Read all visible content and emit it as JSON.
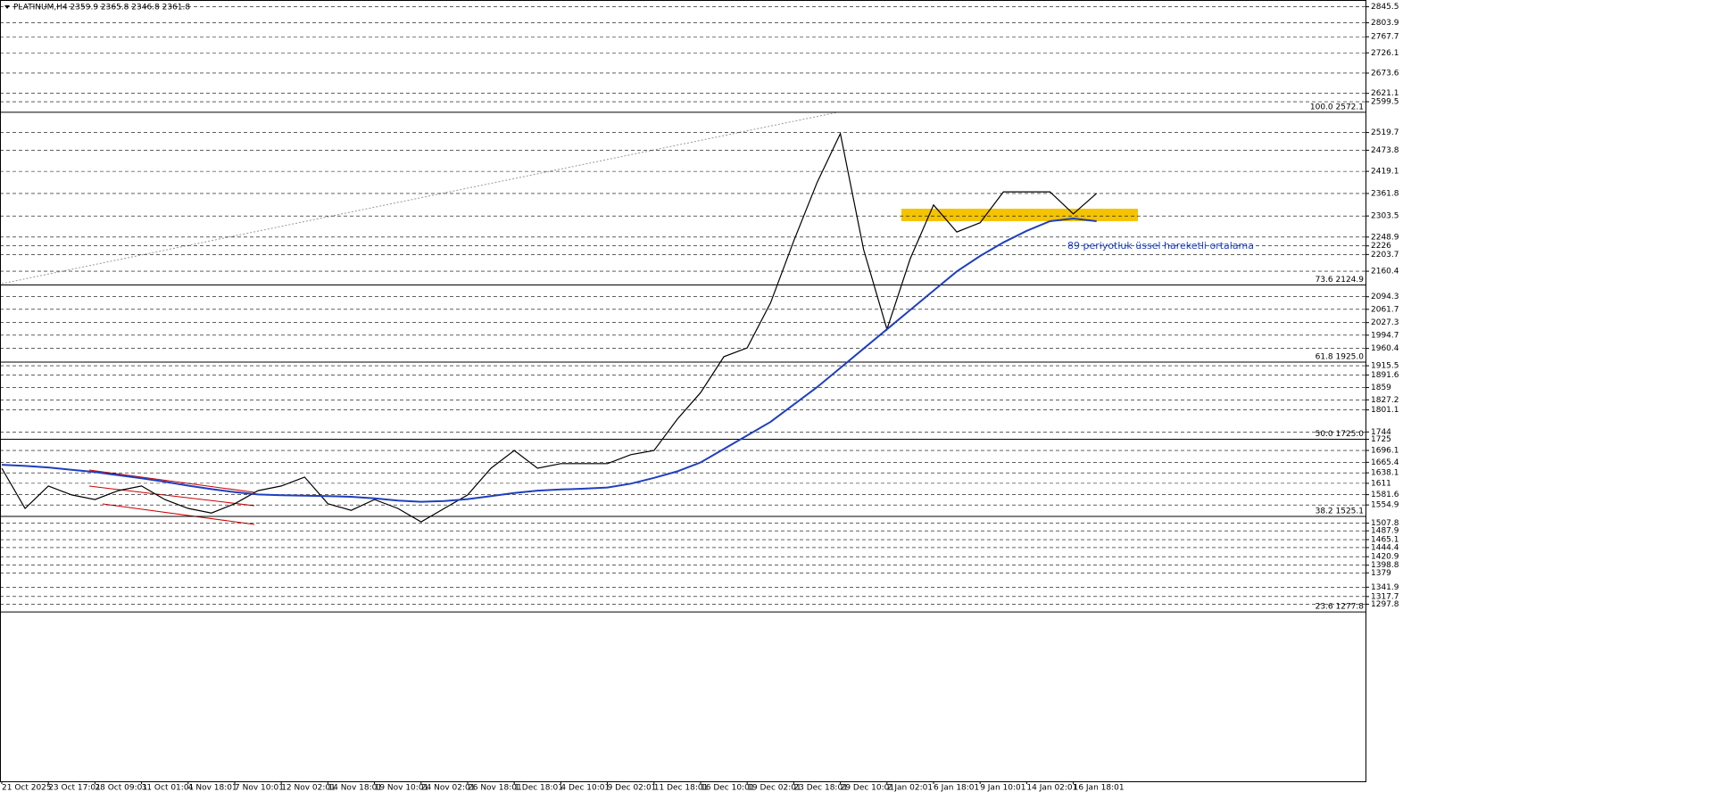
{
  "chart_data": {
    "type": "line",
    "title": "PLATINUM,H4  2359.9 2365.8 2346.8 2361.8",
    "annotation": "89 periyotluk üssel hareketli ortalama",
    "categories": [
      "21 Oct 2025",
      null,
      "23 Oct 17:01",
      null,
      "28 Oct 09:01",
      null,
      "31 Oct 01:01",
      null,
      "4 Nov 18:01",
      null,
      "7 Nov 10:01",
      null,
      "12 Nov 02:01",
      null,
      "14 Nov 18:01",
      null,
      "19 Nov 10:01",
      null,
      "24 Nov 02:01",
      null,
      "26 Nov 18:01",
      null,
      "1 Dec 18:01",
      null,
      "4 Dec 10:01",
      null,
      "9 Dec 02:01",
      null,
      "11 Dec 18:01",
      null,
      "16 Dec 10:01",
      null,
      "19 Dec 02:01",
      null,
      "23 Dec 18:01",
      null,
      "29 Dec 10:01",
      null,
      "2 Jan 02:01",
      null,
      "6 Jan 18:01",
      null,
      "9 Jan 10:01",
      null,
      "14 Jan 02:01",
      null,
      "16 Jan 18:01",
      null
    ],
    "series": [
      {
        "color": "#000000",
        "values": [
          1650,
          1546,
          1604,
          1581,
          1569,
          1592,
          1604,
          1569,
          1546,
          1534,
          1558,
          1592,
          1604,
          1627,
          1558,
          1541,
          1569,
          1546,
          1511,
          1546,
          1581,
          1650,
          1696,
          1650,
          1662,
          1662,
          1662,
          1685,
          1696,
          1777,
          1846,
          1939,
          1962,
          2078,
          2239,
          2390,
          2517,
          2216,
          2010,
          2193,
          2332,
          2262,
          2286,
          2366,
          2366,
          2366,
          2309,
          2362
        ]
      },
      {
        "color": "#1f3fbf",
        "values": [
          1659,
          1656,
          1652,
          1646,
          1640,
          1632,
          1624,
          1615,
          1605,
          1596,
          1588,
          1582,
          1580,
          1579,
          1578,
          1576,
          1572,
          1566,
          1563,
          1565,
          1570,
          1578,
          1586,
          1592,
          1595,
          1597,
          1600,
          1610,
          1625,
          1642,
          1665,
          1700,
          1735,
          1770,
          1815,
          1860,
          1910,
          1960,
          2010,
          2060,
          2110,
          2160,
          2200,
          2235,
          2265,
          2290,
          2297,
          2290
        ]
      }
    ],
    "ylim": [
      839,
      2863
    ],
    "yticks": [
      2845.5,
      2803.9,
      2767.7,
      2726.1,
      2673.6,
      2621.1,
      2599.5,
      2519.7,
      2473.8,
      2419.1,
      2361.8,
      2303.5,
      2248.9,
      2226.0,
      2203.7,
      2160.4,
      2094.3,
      2061.7,
      2027.3,
      1994.7,
      1960.4,
      1915.5,
      1891.6,
      1859.0,
      1827.2,
      1801.1,
      1744.0,
      1725.0,
      1696.1,
      1665.4,
      1638.1,
      1611.0,
      1581.6,
      1554.9,
      1507.8,
      1487.9,
      1465.1,
      1444.4,
      1420.9,
      1398.8,
      1379.0,
      1341.9,
      1317.7,
      1297.8
    ],
    "fib_levels": [
      {
        "value": 2572.1,
        "label": "100.0 2572.1"
      },
      {
        "value": 2124.9,
        "label": "73.6 2124.9"
      },
      {
        "value": 1925.0,
        "label": "61.8 1925.0"
      },
      {
        "value": 1725.0,
        "label": "50.0 1725.0"
      },
      {
        "value": 1525.1,
        "label": "38.2 1525.1"
      },
      {
        "value": 1277.8,
        "label": "23.6 1277.8"
      }
    ],
    "grid": true
  }
}
